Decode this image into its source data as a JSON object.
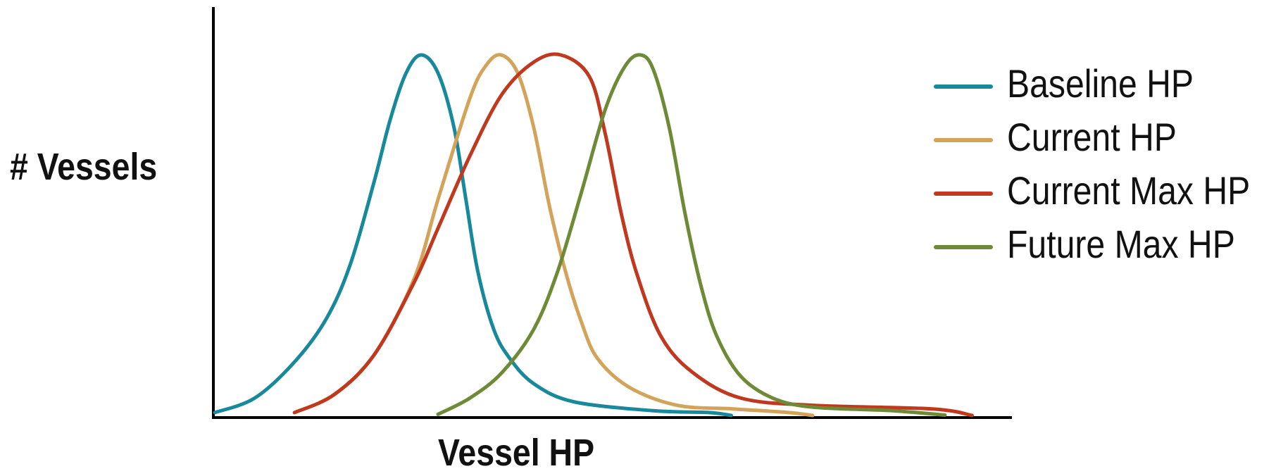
{
  "chart_data": {
    "type": "line",
    "xlabel": "Vessel HP",
    "ylabel": "# Vessels",
    "xlim": [
      0,
      100
    ],
    "ylim": [
      0,
      100
    ],
    "grid": false,
    "legend_position": "top-right",
    "series": [
      {
        "name": "Baseline HP",
        "color": "#17899a",
        "x": [
          0,
          5,
          10,
          14,
          17,
          20,
          22,
          24,
          25.9,
          28,
          30,
          31.5,
          33,
          35,
          37,
          40,
          45,
          55,
          62,
          64.8
        ],
        "y": [
          1,
          5,
          15,
          27,
          42,
          65,
          82,
          95,
          100,
          95,
          80,
          60,
          40,
          24,
          16,
          9,
          4,
          1.5,
          1,
          0.2
        ]
      },
      {
        "name": "Current HP",
        "color": "#d4a35a",
        "x": [
          10,
          15,
          20,
          25,
          28,
          32,
          34,
          35.9,
          38,
          40,
          42,
          44,
          46,
          48,
          52,
          58,
          65,
          72,
          75
        ],
        "y": [
          1,
          6,
          17,
          38,
          60,
          88,
          97,
          100,
          95,
          80,
          58,
          40,
          26,
          16,
          8,
          3,
          2,
          1,
          0.2
        ]
      },
      {
        "name": "Current Max HP",
        "color": "#c0391f",
        "x": [
          10,
          15,
          20,
          25,
          28,
          32,
          36,
          40,
          43.4,
          47,
          49,
          51,
          53,
          56,
          60,
          66,
          75,
          90,
          95
        ],
        "y": [
          1,
          6,
          17,
          37,
          52,
          72,
          89,
          98,
          100,
          94,
          78,
          56,
          39,
          22,
          12,
          5,
          3,
          2,
          0.2
        ]
      },
      {
        "name": "Future Max HP",
        "color": "#6f8a37",
        "x": [
          28,
          32,
          36,
          40,
          43,
          46,
          49,
          51.5,
          53.4,
          55,
          57,
          59,
          61,
          63,
          66,
          70,
          75,
          85,
          91.6
        ],
        "y": [
          0.5,
          5,
          12,
          24,
          40,
          62,
          85,
          97,
          100,
          96,
          80,
          56,
          36,
          22,
          11,
          5,
          2.5,
          1.5,
          0.3
        ]
      }
    ]
  }
}
